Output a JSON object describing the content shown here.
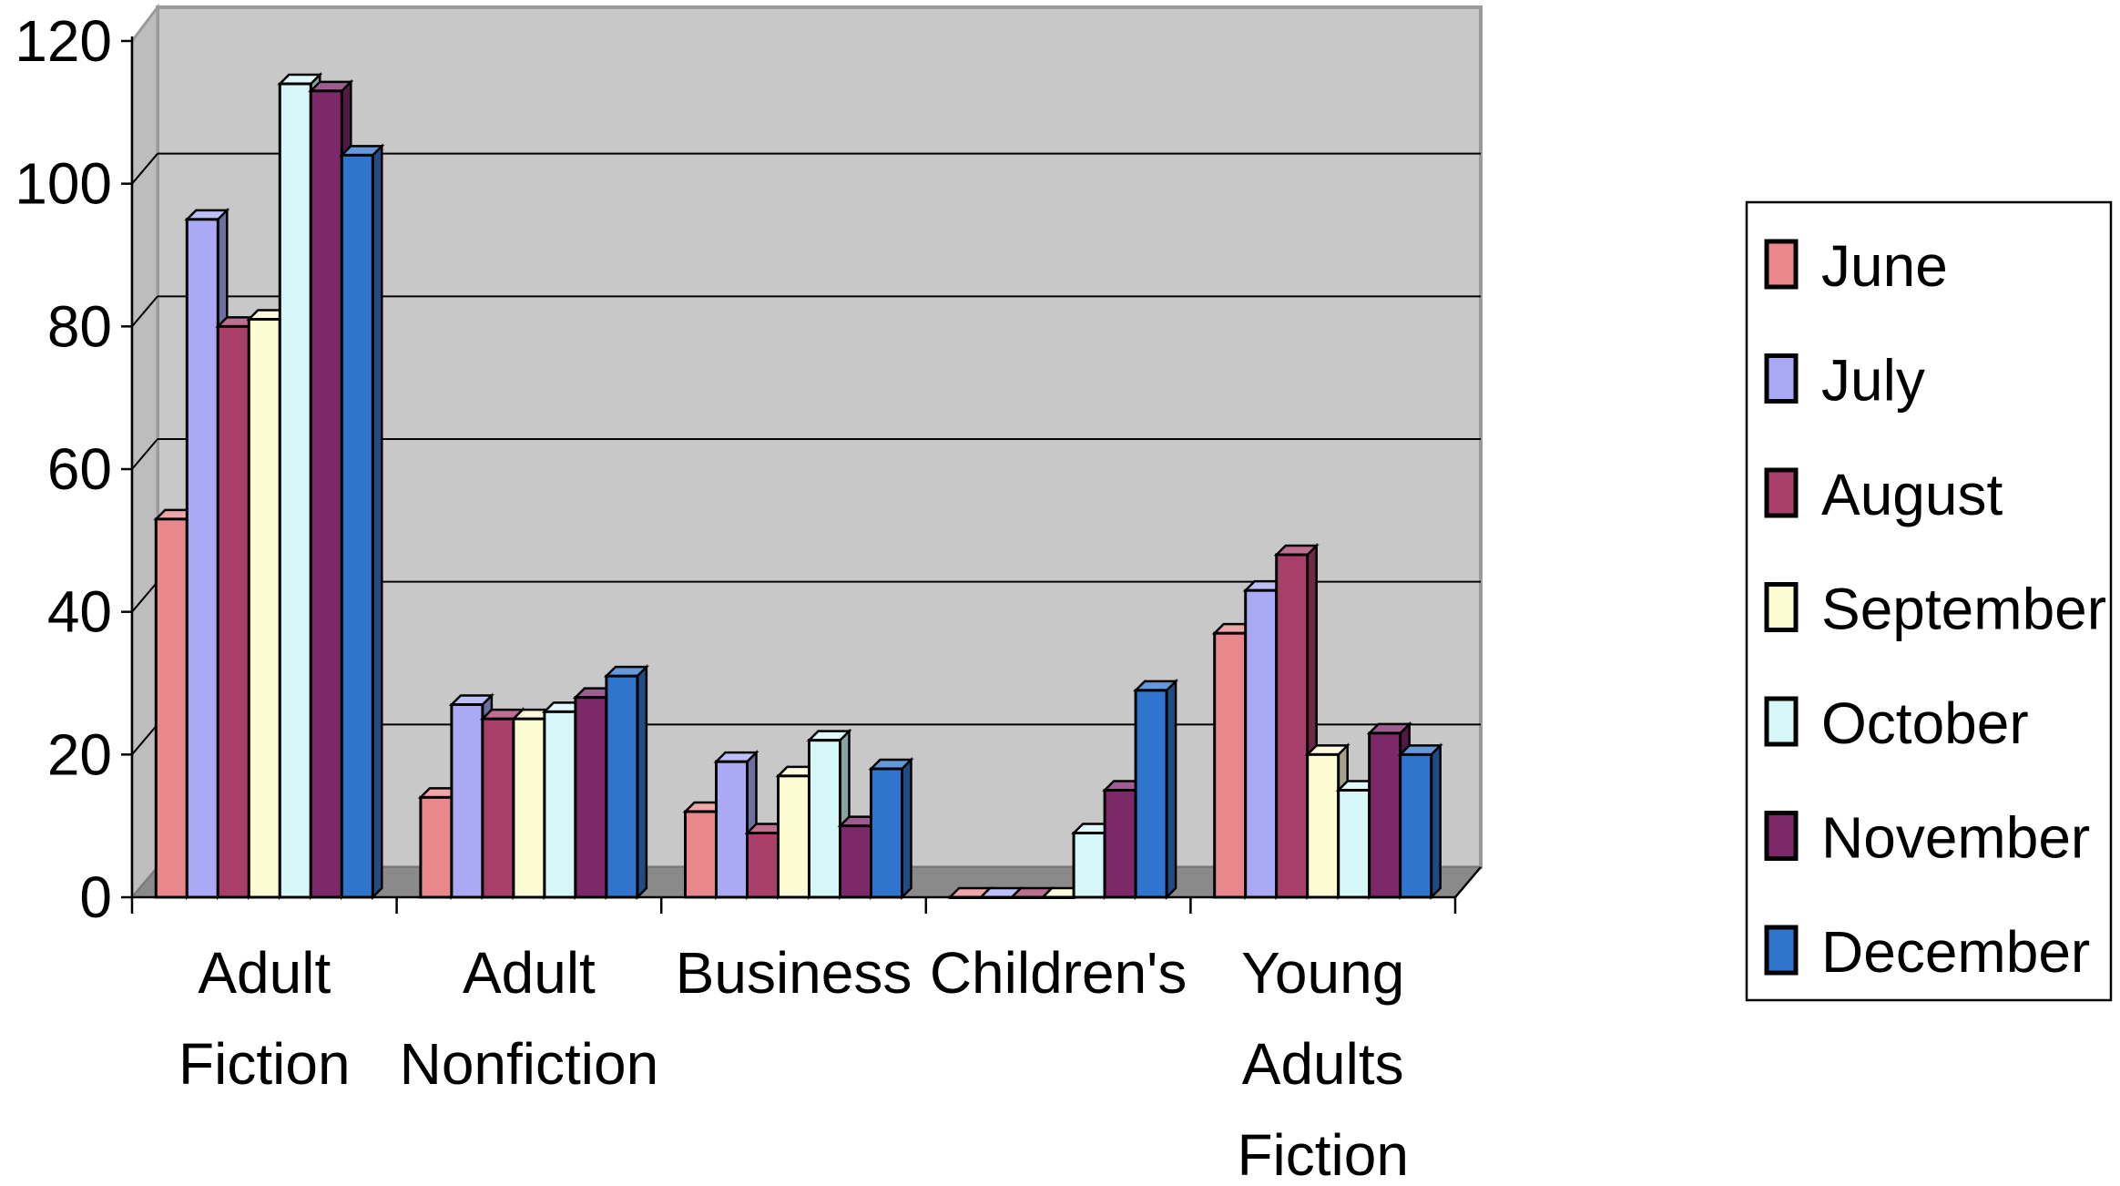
{
  "chart_data": {
    "type": "bar",
    "title": "",
    "xlabel": "",
    "ylabel": "",
    "ylim": [
      0,
      120
    ],
    "yticks": [
      "0",
      "20",
      "40",
      "60",
      "80",
      "100",
      "120"
    ],
    "grid": true,
    "legend_position": "right",
    "style": "3d-clustered-column",
    "categories": [
      [
        "Adult",
        "Fiction"
      ],
      [
        "Adult",
        "Nonfiction"
      ],
      [
        "Business"
      ],
      [
        "Children's"
      ],
      [
        "Young",
        "Adults",
        "Fiction"
      ]
    ],
    "series": [
      {
        "name": "June",
        "color": "#e8888c",
        "values": [
          53,
          14,
          12,
          0,
          37
        ]
      },
      {
        "name": "July",
        "color": "#a9a9f5",
        "values": [
          95,
          27,
          19,
          0,
          43
        ]
      },
      {
        "name": "August",
        "color": "#a83f6b",
        "values": [
          80,
          25,
          9,
          0,
          48
        ]
      },
      {
        "name": "September",
        "color": "#fdfbd2",
        "values": [
          81,
          25,
          17,
          0,
          20
        ]
      },
      {
        "name": "October",
        "color": "#d5f7f8",
        "values": [
          114,
          26,
          22,
          9,
          15
        ]
      },
      {
        "name": "November",
        "color": "#7c2869",
        "values": [
          113,
          28,
          10,
          15,
          23
        ]
      },
      {
        "name": "December",
        "color": "#2f75cd",
        "values": [
          104,
          31,
          18,
          29,
          20
        ]
      }
    ]
  }
}
